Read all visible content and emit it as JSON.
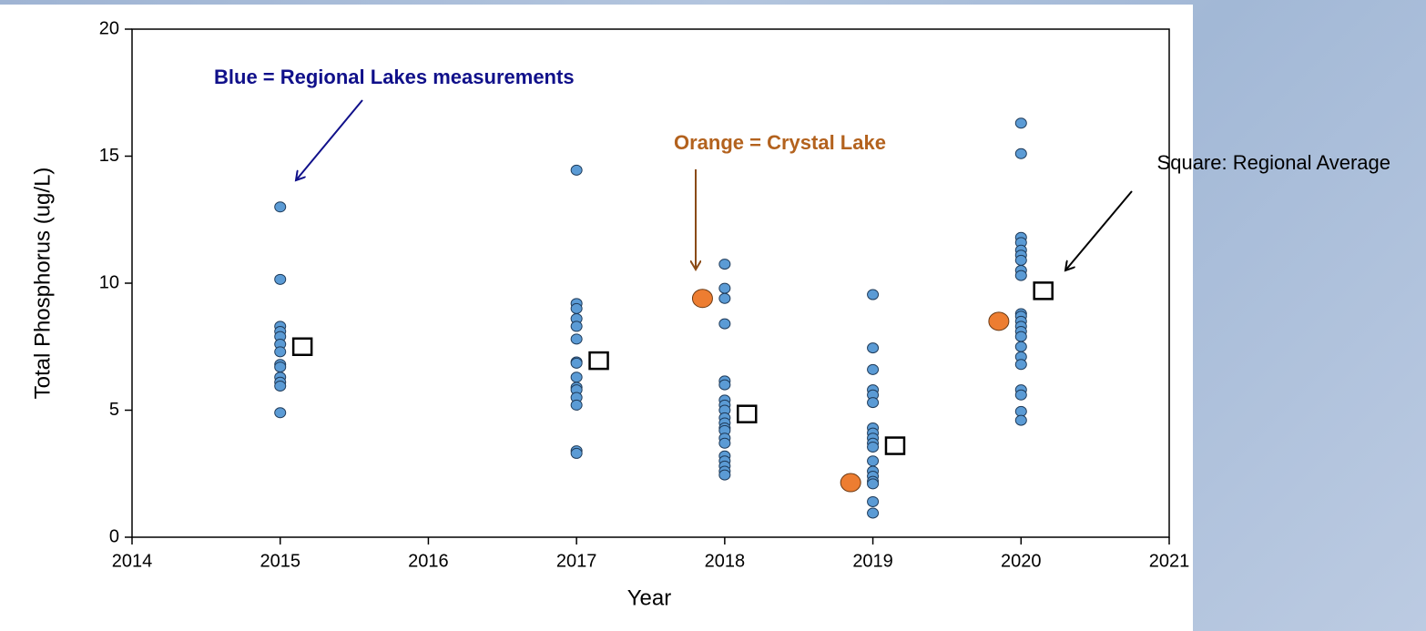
{
  "chart_data": {
    "type": "scatter",
    "x_label": "Year",
    "y_label": "Total Phosphorus (ug/L)",
    "xlim": [
      2014,
      2021
    ],
    "ylim": [
      0,
      20
    ],
    "xticks": [
      2014,
      2015,
      2016,
      2017,
      2018,
      2019,
      2020,
      2021
    ],
    "yticks": [
      0,
      5,
      10,
      15,
      20
    ],
    "grid": false,
    "series": [
      {
        "color": "#5b9bd5",
        "marker": "circle",
        "x": [
          2015,
          2015,
          2015,
          2015,
          2015,
          2015,
          2015,
          2015,
          2015,
          2015,
          2015,
          2015,
          2015,
          2017,
          2017,
          2017,
          2017,
          2017,
          2017,
          2017,
          2017,
          2017,
          2017,
          2017,
          2017,
          2017,
          2017,
          2017,
          2018,
          2018,
          2018,
          2018,
          2018,
          2018,
          2018,
          2018,
          2018,
          2018,
          2018,
          2018,
          2018,
          2018,
          2018,
          2018,
          2018,
          2018,
          2018,
          2018,
          2019,
          2019,
          2019,
          2019,
          2019,
          2019,
          2019,
          2019,
          2019,
          2019,
          2019,
          2019,
          2019,
          2019,
          2019,
          2019,
          2019,
          2019,
          2020,
          2020,
          2020,
          2020,
          2020,
          2020,
          2020,
          2020,
          2020,
          2020,
          2020,
          2020,
          2020,
          2020,
          2020,
          2020,
          2020,
          2020,
          2020,
          2020,
          2020,
          2020
        ],
        "values": [
          13.0,
          10.15,
          8.3,
          8.1,
          7.9,
          7.6,
          7.3,
          6.8,
          6.7,
          6.3,
          6.1,
          5.95,
          4.9,
          14.45,
          9.2,
          9.0,
          8.6,
          8.3,
          7.8,
          6.9,
          6.85,
          6.3,
          5.9,
          5.8,
          5.5,
          5.2,
          3.4,
          3.3,
          10.75,
          9.8,
          9.4,
          8.4,
          6.15,
          6.0,
          5.4,
          5.2,
          5.0,
          4.7,
          4.5,
          4.3,
          4.2,
          3.9,
          3.7,
          3.2,
          3.0,
          2.8,
          2.6,
          2.45,
          9.55,
          7.45,
          6.6,
          5.8,
          5.6,
          5.3,
          4.3,
          4.1,
          3.9,
          3.7,
          3.55,
          3.0,
          2.6,
          2.4,
          2.2,
          2.1,
          1.4,
          0.95,
          16.3,
          15.1,
          11.8,
          11.6,
          11.3,
          11.1,
          10.9,
          10.5,
          10.3,
          8.8,
          8.7,
          8.5,
          8.3,
          8.1,
          7.9,
          7.5,
          7.1,
          6.8,
          5.8,
          5.6,
          4.95,
          4.6
        ]
      },
      {
        "color": "#ed7d31",
        "marker": "circle-large",
        "x": [
          2017.85,
          2018.85,
          2019.85
        ],
        "values": [
          9.4,
          2.15,
          8.5
        ]
      },
      {
        "color": "#ffffff",
        "marker": "square",
        "x": [
          2015.15,
          2017.15,
          2018.15,
          2019.15,
          2020.15
        ],
        "values": [
          7.5,
          6.95,
          4.85,
          3.6,
          9.7
        ]
      }
    ],
    "annotations": [
      {
        "text": "Blue = Regional Lakes measurements",
        "color": "#10108a",
        "bold": true
      },
      {
        "text": "Orange = Crystal Lake",
        "color": "#b3621e",
        "bold": true
      },
      {
        "text": "Square: Regional Average",
        "color": "#000000",
        "bold": false
      }
    ]
  }
}
